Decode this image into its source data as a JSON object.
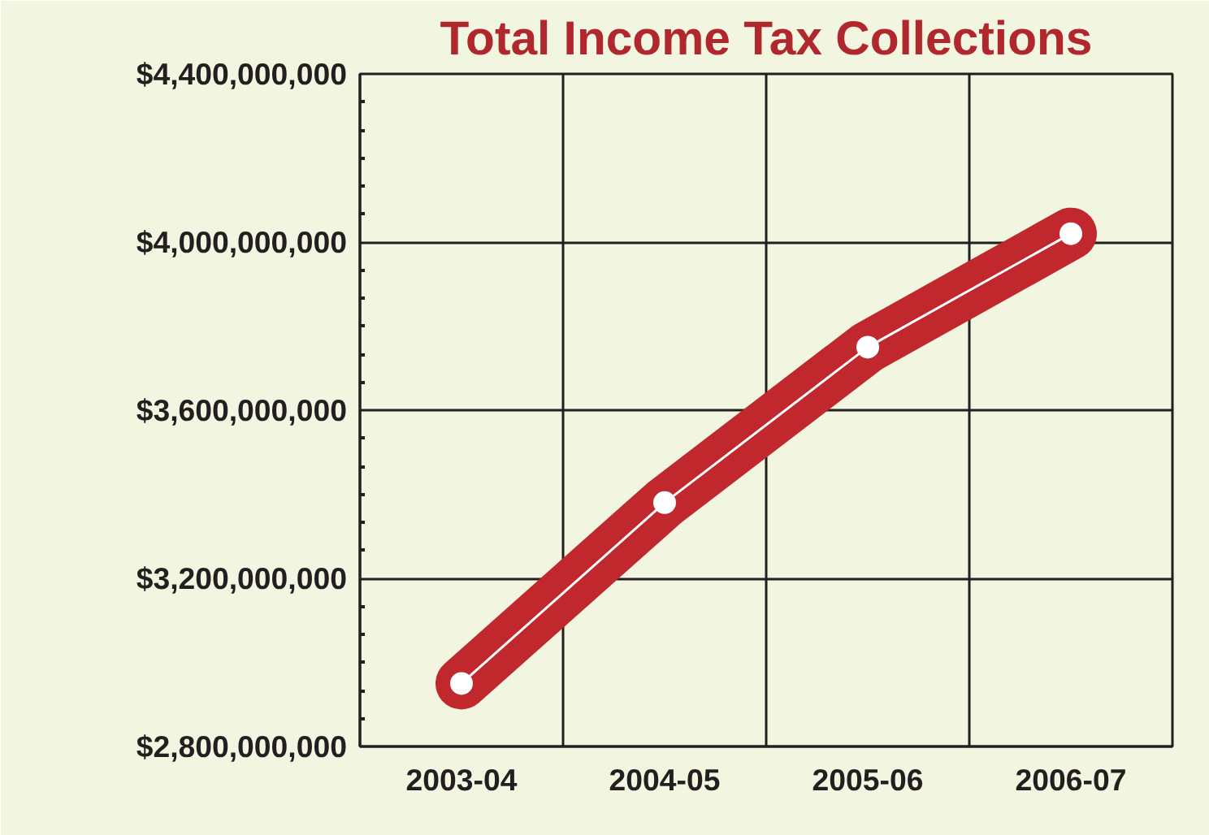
{
  "chart_data": {
    "type": "line",
    "title": "Total Income Tax Collections",
    "categories": [
      "2003-04",
      "2004-05",
      "2005-06",
      "2006-07"
    ],
    "series": [
      {
        "color": "#c1282e",
        "values": [
          2950000000,
          3380000000,
          3750000000,
          4020000000
        ]
      }
    ],
    "ylim": [
      2800000000,
      4400000000
    ],
    "yticks": [
      {
        "value": 2800000000,
        "label": "$2,800,000,000"
      },
      {
        "value": 3200000000,
        "label": "$3,200,000,000"
      },
      {
        "value": 3600000000,
        "label": "$3,600,000,000"
      },
      {
        "value": 4000000000,
        "label": "$4,000,000,000"
      },
      {
        "value": 4400000000,
        "label": "$4,400,000,000"
      }
    ],
    "grid": true,
    "marker": "circle",
    "line_style": "solid"
  }
}
